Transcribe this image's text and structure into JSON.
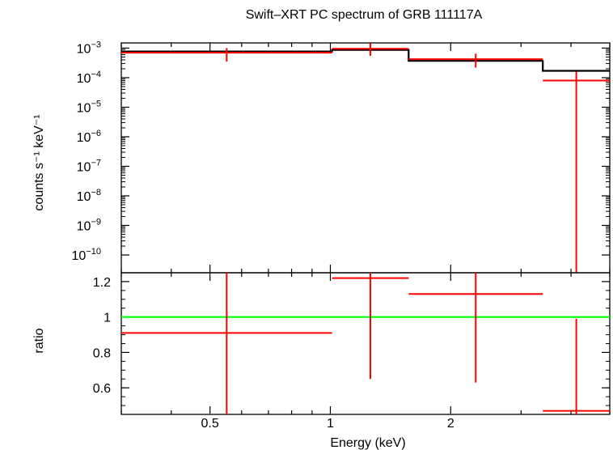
{
  "chart_data": [
    {
      "type": "line",
      "panel": "spectrum",
      "title": "Swift–XRT PC spectrum of GRB 111117A",
      "ylabel": "counts s⁻¹ keV⁻¹",
      "yscale": "log",
      "xscale": "log",
      "ylim": [
        2.5e-11,
        0.0015
      ],
      "xlim": [
        0.3,
        5.0
      ],
      "y_ticks": [
        {
          "value": 0.001,
          "base": "10",
          "exp": "−3"
        },
        {
          "value": 0.0001,
          "base": "10",
          "exp": "−4"
        },
        {
          "value": 1e-05,
          "base": "10",
          "exp": "−5"
        },
        {
          "value": 1e-06,
          "base": "10",
          "exp": "−6"
        },
        {
          "value": 1e-07,
          "base": "10",
          "exp": "−7"
        },
        {
          "value": 1e-08,
          "base": "10",
          "exp": "−8"
        },
        {
          "value": 1e-09,
          "base": "10",
          "exp": "−9"
        },
        {
          "value": 1e-10,
          "base": "10",
          "exp": "−10"
        }
      ],
      "data_points": [
        {
          "x_lo": 0.3,
          "x_hi": 1.01,
          "y": 0.0007,
          "y_lo": 0.00035,
          "y_hi": 0.001
        },
        {
          "x_lo": 1.01,
          "x_hi": 1.57,
          "y": 0.00095,
          "y_lo": 0.00055,
          "y_hi": 0.00145
        },
        {
          "x_lo": 1.57,
          "x_hi": 3.4,
          "y": 0.00042,
          "y_lo": 0.00022,
          "y_hi": 0.00065
        },
        {
          "x_lo": 3.4,
          "x_hi": 5.0,
          "y": 8e-05,
          "y_lo": 2.5e-11,
          "y_hi": 0.00016
        }
      ],
      "model_steps": [
        {
          "x_lo": 0.3,
          "x_hi": 1.01,
          "y": 0.00077
        },
        {
          "x_lo": 1.01,
          "x_hi": 1.57,
          "y": 0.00087
        },
        {
          "x_lo": 1.57,
          "x_hi": 3.4,
          "y": 0.00037
        },
        {
          "x_lo": 3.4,
          "x_hi": 5.0,
          "y": 0.00017
        }
      ],
      "colors": {
        "data": "#ff0000",
        "model": "#000000"
      }
    },
    {
      "type": "line",
      "panel": "ratio",
      "xlabel": "Energy (keV)",
      "ylabel": "ratio",
      "xscale": "log",
      "xlim": [
        0.3,
        5.0
      ],
      "ylim": [
        0.45,
        1.25
      ],
      "x_ticks": [
        {
          "value": 0.5,
          "label": "0.5"
        },
        {
          "value": 1,
          "label": "1"
        },
        {
          "value": 2,
          "label": "2"
        }
      ],
      "y_ticks": [
        {
          "value": 0.6,
          "label": "0.6"
        },
        {
          "value": 0.8,
          "label": "0.8"
        },
        {
          "value": 1.0,
          "label": "1"
        },
        {
          "value": 1.2,
          "label": "1.2"
        }
      ],
      "reference_line": {
        "y": 1.0,
        "color": "#00ff00"
      },
      "data_points": [
        {
          "x_lo": 0.3,
          "x_hi": 1.01,
          "y": 0.91,
          "y_lo": 0.45,
          "y_hi": 1.25
        },
        {
          "x_lo": 1.01,
          "x_hi": 1.57,
          "y": 1.22,
          "y_lo": 0.65,
          "y_hi": 1.25
        },
        {
          "x_lo": 1.57,
          "x_hi": 3.4,
          "y": 1.13,
          "y_lo": 0.63,
          "y_hi": 1.25
        },
        {
          "x_lo": 3.4,
          "x_hi": 5.0,
          "y": 0.47,
          "y_lo": 0.45,
          "y_hi": 0.99
        }
      ],
      "colors": {
        "data": "#ff0000"
      }
    }
  ]
}
